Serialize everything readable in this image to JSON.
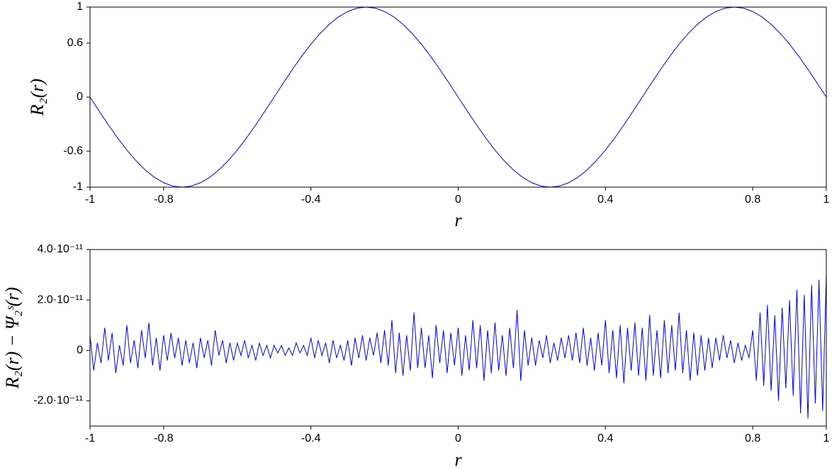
{
  "chart_data": [
    {
      "type": "line",
      "x_label": "r",
      "y_label": "R₂(r)",
      "xlim": [
        -1,
        1
      ],
      "xticks": [
        -1,
        -0.8,
        -0.4,
        0,
        0.4,
        0.8,
        1
      ],
      "ylim": [
        -1,
        1
      ],
      "yticks": [
        -1,
        -0.6,
        0,
        0.6,
        1
      ],
      "x": [
        -1,
        -0.975,
        -0.95,
        -0.925,
        -0.9,
        -0.875,
        -0.85,
        -0.825,
        -0.8,
        -0.775,
        -0.75,
        -0.725,
        -0.7,
        -0.675,
        -0.65,
        -0.625,
        -0.6,
        -0.575,
        -0.55,
        -0.525,
        -0.5,
        -0.475,
        -0.45,
        -0.425,
        -0.4,
        -0.375,
        -0.35,
        -0.325,
        -0.3,
        -0.275,
        -0.25,
        -0.225,
        -0.2,
        -0.175,
        -0.15,
        -0.125,
        -0.1,
        -0.075,
        -0.05,
        -0.025,
        0,
        0.025,
        0.05,
        0.075,
        0.1,
        0.125,
        0.15,
        0.175,
        0.2,
        0.225,
        0.25,
        0.275,
        0.3,
        0.325,
        0.35,
        0.375,
        0.4,
        0.425,
        0.45,
        0.475,
        0.5,
        0.525,
        0.55,
        0.575,
        0.6,
        0.625,
        0.65,
        0.675,
        0.7,
        0.725,
        0.75,
        0.775,
        0.8,
        0.825,
        0.85,
        0.875,
        0.9,
        0.925,
        0.95,
        0.975,
        1
      ],
      "series": [
        {
          "color": "#0000ff",
          "values": [
            0,
            -0.156,
            -0.309,
            -0.454,
            -0.588,
            -0.707,
            -0.809,
            -0.891,
            -0.951,
            -0.988,
            -1,
            -0.988,
            -0.951,
            -0.891,
            -0.809,
            -0.707,
            -0.588,
            -0.454,
            -0.309,
            -0.156,
            0,
            0.156,
            0.309,
            0.454,
            0.588,
            0.707,
            0.809,
            0.891,
            0.951,
            0.988,
            1,
            0.988,
            0.951,
            0.891,
            0.809,
            0.707,
            0.588,
            0.454,
            0.309,
            0.156,
            0,
            -0.156,
            -0.309,
            -0.454,
            -0.588,
            -0.707,
            -0.809,
            -0.891,
            -0.951,
            -0.988,
            -1,
            -0.988,
            -0.951,
            -0.891,
            -0.809,
            -0.707,
            -0.588,
            -0.454,
            -0.309,
            -0.156,
            0,
            0.156,
            0.309,
            0.454,
            0.588,
            0.707,
            0.809,
            0.891,
            0.951,
            0.988,
            1,
            0.988,
            0.951,
            0.891,
            0.809,
            0.707,
            0.588,
            0.454,
            0.309,
            0.156,
            0
          ]
        }
      ]
    },
    {
      "type": "line",
      "x_label": "r",
      "y_label": "R₂(r) − Ψ₂ˢ(r)",
      "xlim": [
        -1,
        1
      ],
      "xticks": [
        -1,
        -0.8,
        -0.4,
        0,
        0.4,
        0.8,
        1
      ],
      "ylim": [
        -3e-11,
        4e-11
      ],
      "yticks": [
        {
          "value": -2e-11,
          "label": "-2.0·10⁻¹¹"
        },
        0,
        {
          "value": 2e-11,
          "label": "2.0·10⁻¹¹"
        },
        {
          "value": 4e-11,
          "label": "4.0·10⁻¹¹"
        }
      ],
      "x": [
        -1,
        -0.99,
        -0.98,
        -0.97,
        -0.96,
        -0.95,
        -0.94,
        -0.93,
        -0.92,
        -0.91,
        -0.9,
        -0.89,
        -0.88,
        -0.87,
        -0.86,
        -0.85,
        -0.84,
        -0.83,
        -0.82,
        -0.81,
        -0.8,
        -0.79,
        -0.78,
        -0.77,
        -0.76,
        -0.75,
        -0.74,
        -0.73,
        -0.72,
        -0.71,
        -0.7,
        -0.69,
        -0.68,
        -0.67,
        -0.66,
        -0.65,
        -0.64,
        -0.63,
        -0.62,
        -0.61,
        -0.6,
        -0.59,
        -0.58,
        -0.57,
        -0.56,
        -0.55,
        -0.54,
        -0.53,
        -0.52,
        -0.51,
        -0.5,
        -0.49,
        -0.48,
        -0.47,
        -0.46,
        -0.45,
        -0.44,
        -0.43,
        -0.42,
        -0.41,
        -0.4,
        -0.39,
        -0.38,
        -0.37,
        -0.36,
        -0.35,
        -0.34,
        -0.33,
        -0.32,
        -0.31,
        -0.3,
        -0.29,
        -0.28,
        -0.27,
        -0.26,
        -0.25,
        -0.24,
        -0.23,
        -0.22,
        -0.21,
        -0.2,
        -0.19,
        -0.18,
        -0.17,
        -0.16,
        -0.15,
        -0.14,
        -0.13,
        -0.12,
        -0.11,
        -0.1,
        -0.09,
        -0.08,
        -0.07,
        -0.06,
        -0.05,
        -0.04,
        -0.03,
        -0.02,
        -0.01,
        0,
        0.01,
        0.02,
        0.03,
        0.04,
        0.05,
        0.06,
        0.07,
        0.08,
        0.09,
        0.1,
        0.11,
        0.12,
        0.13,
        0.14,
        0.15,
        0.16,
        0.17,
        0.18,
        0.19,
        0.2,
        0.21,
        0.22,
        0.23,
        0.24,
        0.25,
        0.26,
        0.27,
        0.28,
        0.29,
        0.3,
        0.31,
        0.32,
        0.33,
        0.34,
        0.35,
        0.36,
        0.37,
        0.38,
        0.39,
        0.4,
        0.41,
        0.42,
        0.43,
        0.44,
        0.45,
        0.46,
        0.47,
        0.48,
        0.49,
        0.5,
        0.51,
        0.52,
        0.53,
        0.54,
        0.55,
        0.56,
        0.57,
        0.58,
        0.59,
        0.6,
        0.61,
        0.62,
        0.63,
        0.64,
        0.65,
        0.66,
        0.67,
        0.68,
        0.69,
        0.7,
        0.71,
        0.72,
        0.73,
        0.74,
        0.75,
        0.76,
        0.77,
        0.78,
        0.79,
        0.8,
        0.81,
        0.82,
        0.83,
        0.84,
        0.85,
        0.86,
        0.87,
        0.88,
        0.89,
        0.9,
        0.91,
        0.92,
        0.93,
        0.94,
        0.95,
        0.96,
        0.97,
        0.98,
        0.99,
        1
      ],
      "series": [
        {
          "color": "#0000ff",
          "values": [
            6e-12,
            -8e-12,
            3e-12,
            -5e-12,
            9e-12,
            -4e-12,
            7e-12,
            -9e-12,
            2e-12,
            -6e-12,
            1e-11,
            -5e-12,
            4e-12,
            -7e-12,
            8e-12,
            -3e-12,
            1.1e-11,
            -6e-12,
            5e-12,
            -8e-12,
            6e-12,
            -4e-12,
            7e-12,
            -3e-12,
            5e-12,
            -6e-12,
            4e-12,
            -5e-12,
            3e-12,
            -7e-12,
            5e-12,
            -3e-12,
            4e-12,
            -6e-12,
            8e-12,
            -2e-12,
            4e-12,
            -5e-12,
            3e-12,
            -4e-12,
            3e-12,
            -2e-12,
            4e-12,
            -3e-12,
            2e-12,
            -4e-12,
            3e-12,
            -2e-12,
            2e-12,
            -3e-12,
            2e-12,
            -1e-12,
            2e-12,
            -2e-12,
            1e-12,
            -2e-12,
            3e-12,
            -1e-12,
            2e-12,
            -2e-12,
            5e-12,
            -3e-12,
            4e-12,
            -2e-12,
            3e-12,
            -5e-12,
            4e-12,
            -3e-12,
            2e-12,
            -4e-12,
            4e-12,
            -6e-12,
            5e-12,
            -3e-12,
            6e-12,
            -4e-12,
            5e-12,
            -2e-12,
            7e-12,
            -5e-12,
            8e-12,
            -6e-12,
            1.2e-11,
            -9e-12,
            7e-12,
            -1e-11,
            6e-12,
            -8e-12,
            1.5e-11,
            -7e-12,
            9e-12,
            -7e-12,
            6e-12,
            -1.1e-11,
            1e-11,
            -5e-12,
            8e-12,
            -9e-12,
            7e-12,
            -6e-12,
            9e-12,
            -1e-11,
            6e-12,
            -8e-12,
            1.2e-11,
            -7e-12,
            1e-11,
            -1.2e-11,
            8e-12,
            -9e-12,
            1.1e-11,
            -8e-12,
            6e-12,
            -1e-11,
            9e-12,
            -7e-12,
            1.6e-11,
            -1.2e-11,
            8e-12,
            -6e-12,
            5e-12,
            -6e-12,
            4e-12,
            -3e-12,
            6e-12,
            -5e-12,
            3e-12,
            -4e-12,
            5e-12,
            -3e-12,
            6e-12,
            -4e-12,
            7e-12,
            -5e-12,
            9e-12,
            -6e-12,
            5e-12,
            -8e-12,
            7e-12,
            -6e-12,
            1.2e-11,
            -9e-12,
            8e-12,
            -1.1e-11,
            1e-11,
            -1.3e-11,
            9e-12,
            -8e-12,
            1.1e-11,
            -1e-11,
            9e-12,
            -1.2e-11,
            1.4e-11,
            -1e-11,
            8e-12,
            -1.1e-11,
            1.2e-11,
            -9e-12,
            1e-11,
            -8e-12,
            1.5e-11,
            -9e-12,
            8e-12,
            -1.2e-11,
            7e-12,
            -1e-11,
            6e-12,
            -8e-12,
            5e-12,
            -7e-12,
            5e-12,
            -4e-12,
            6e-12,
            -3e-12,
            4e-12,
            -5e-12,
            3e-12,
            -4e-12,
            2e-12,
            -3e-12,
            8e-12,
            -1.2e-11,
            1.5e-11,
            -1.4e-11,
            1.8e-11,
            -1.6e-11,
            1.4e-11,
            -2e-11,
            1.7e-11,
            -1.5e-11,
            2e-11,
            -1.8e-11,
            2.4e-11,
            -2.5e-11,
            2.2e-11,
            -2.7e-11,
            2.6e-11,
            -2.1e-11,
            2.8e-11,
            -2.4e-11,
            3e-11
          ]
        }
      ]
    }
  ]
}
